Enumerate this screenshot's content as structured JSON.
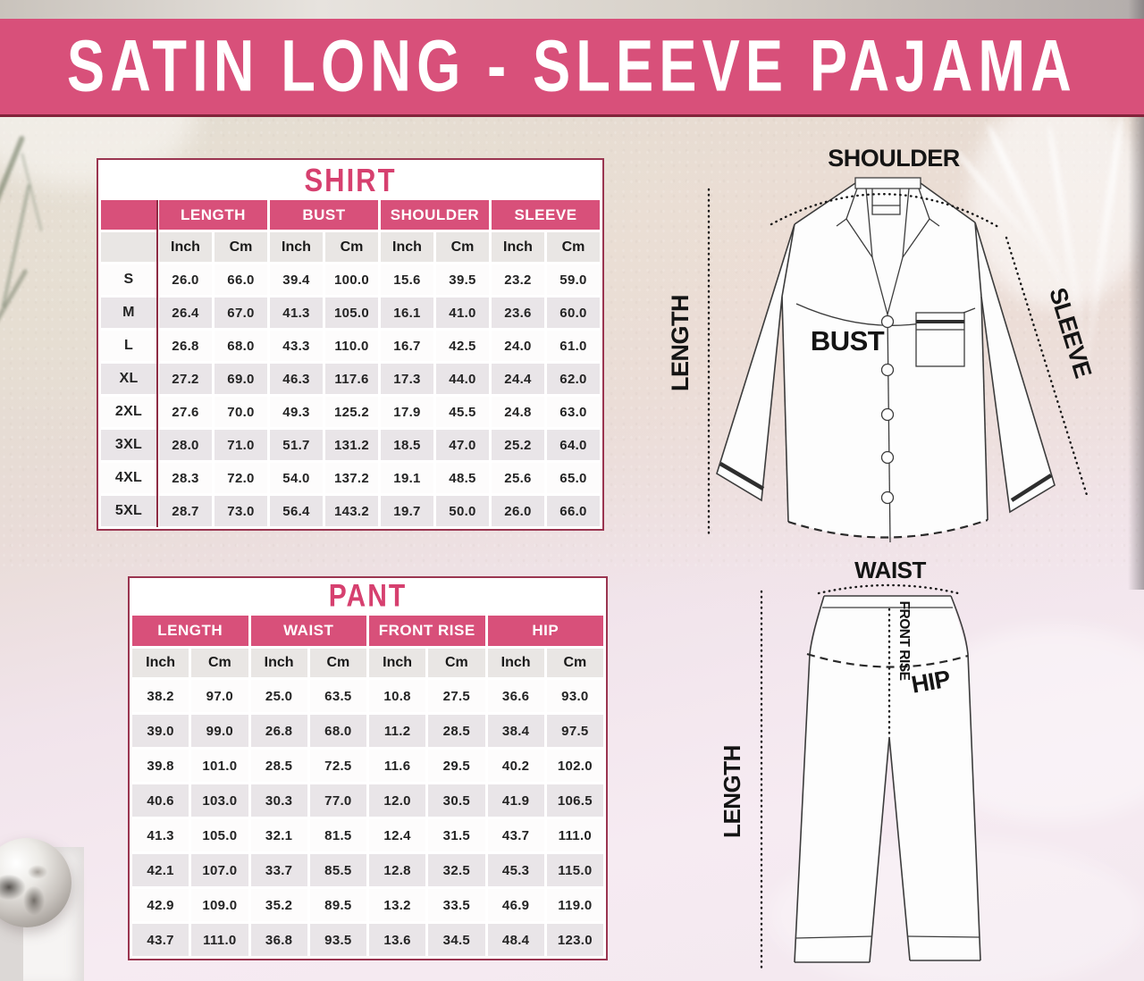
{
  "banner": {
    "title": "SATIN LONG - SLEEVE PAJAMA"
  },
  "colors": {
    "banner_pink": "#d8507a",
    "header_pink": "#d8507a",
    "title_text_pink": "#d6406f",
    "table_border_maroon": "#9a3550",
    "divider_maroon": "#8e2c44",
    "shaded_row": "#e9e5e8",
    "unit_row": "#e9e6e4"
  },
  "chart_data": [
    {
      "type": "table",
      "title": "SHIRT",
      "column_groups": [
        "LENGTH",
        "BUST",
        "SHOULDER",
        "SLEEVE"
      ],
      "unit_row": [
        "Inch",
        "Cm",
        "Inch",
        "Cm",
        "Inch",
        "Cm",
        "Inch",
        "Cm"
      ],
      "rows": [
        {
          "size": "S",
          "values": [
            "26.0",
            "66.0",
            "39.4",
            "100.0",
            "15.6",
            "39.5",
            "23.2",
            "59.0"
          ]
        },
        {
          "size": "M",
          "values": [
            "26.4",
            "67.0",
            "41.3",
            "105.0",
            "16.1",
            "41.0",
            "23.6",
            "60.0"
          ]
        },
        {
          "size": "L",
          "values": [
            "26.8",
            "68.0",
            "43.3",
            "110.0",
            "16.7",
            "42.5",
            "24.0",
            "61.0"
          ]
        },
        {
          "size": "XL",
          "values": [
            "27.2",
            "69.0",
            "46.3",
            "117.6",
            "17.3",
            "44.0",
            "24.4",
            "62.0"
          ]
        },
        {
          "size": "2XL",
          "values": [
            "27.6",
            "70.0",
            "49.3",
            "125.2",
            "17.9",
            "45.5",
            "24.8",
            "63.0"
          ]
        },
        {
          "size": "3XL",
          "values": [
            "28.0",
            "71.0",
            "51.7",
            "131.2",
            "18.5",
            "47.0",
            "25.2",
            "64.0"
          ]
        },
        {
          "size": "4XL",
          "values": [
            "28.3",
            "72.0",
            "54.0",
            "137.2",
            "19.1",
            "48.5",
            "25.6",
            "65.0"
          ]
        },
        {
          "size": "5XL",
          "values": [
            "28.7",
            "73.0",
            "56.4",
            "143.2",
            "19.7",
            "50.0",
            "26.0",
            "66.0"
          ]
        }
      ]
    },
    {
      "type": "table",
      "title": "PANT",
      "column_groups": [
        "LENGTH",
        "WAIST",
        "FRONT RISE",
        "HIP"
      ],
      "unit_row": [
        "Inch",
        "Cm",
        "Inch",
        "Cm",
        "Inch",
        "Cm",
        "Inch",
        "Cm"
      ],
      "rows": [
        {
          "values": [
            "38.2",
            "97.0",
            "25.0",
            "63.5",
            "10.8",
            "27.5",
            "36.6",
            "93.0"
          ]
        },
        {
          "values": [
            "39.0",
            "99.0",
            "26.8",
            "68.0",
            "11.2",
            "28.5",
            "38.4",
            "97.5"
          ]
        },
        {
          "values": [
            "39.8",
            "101.0",
            "28.5",
            "72.5",
            "11.6",
            "29.5",
            "40.2",
            "102.0"
          ]
        },
        {
          "values": [
            "40.6",
            "103.0",
            "30.3",
            "77.0",
            "12.0",
            "30.5",
            "41.9",
            "106.5"
          ]
        },
        {
          "values": [
            "41.3",
            "105.0",
            "32.1",
            "81.5",
            "12.4",
            "31.5",
            "43.7",
            "111.0"
          ]
        },
        {
          "values": [
            "42.1",
            "107.0",
            "33.7",
            "85.5",
            "12.8",
            "32.5",
            "45.3",
            "115.0"
          ]
        },
        {
          "values": [
            "42.9",
            "109.0",
            "35.2",
            "89.5",
            "13.2",
            "33.5",
            "46.9",
            "119.0"
          ]
        },
        {
          "values": [
            "43.7",
            "111.0",
            "36.8",
            "93.5",
            "13.6",
            "34.5",
            "48.4",
            "123.0"
          ]
        }
      ]
    }
  ],
  "shirt_diagram": {
    "labels": {
      "shoulder": "SHOULDER",
      "length": "LENGTH",
      "sleeve": "SLEEVE",
      "bust": "BUST"
    }
  },
  "pant_diagram": {
    "labels": {
      "waist": "WAIST",
      "length": "LENGTH",
      "front_rise": "FRONT RISE",
      "hip": "HIP"
    }
  }
}
